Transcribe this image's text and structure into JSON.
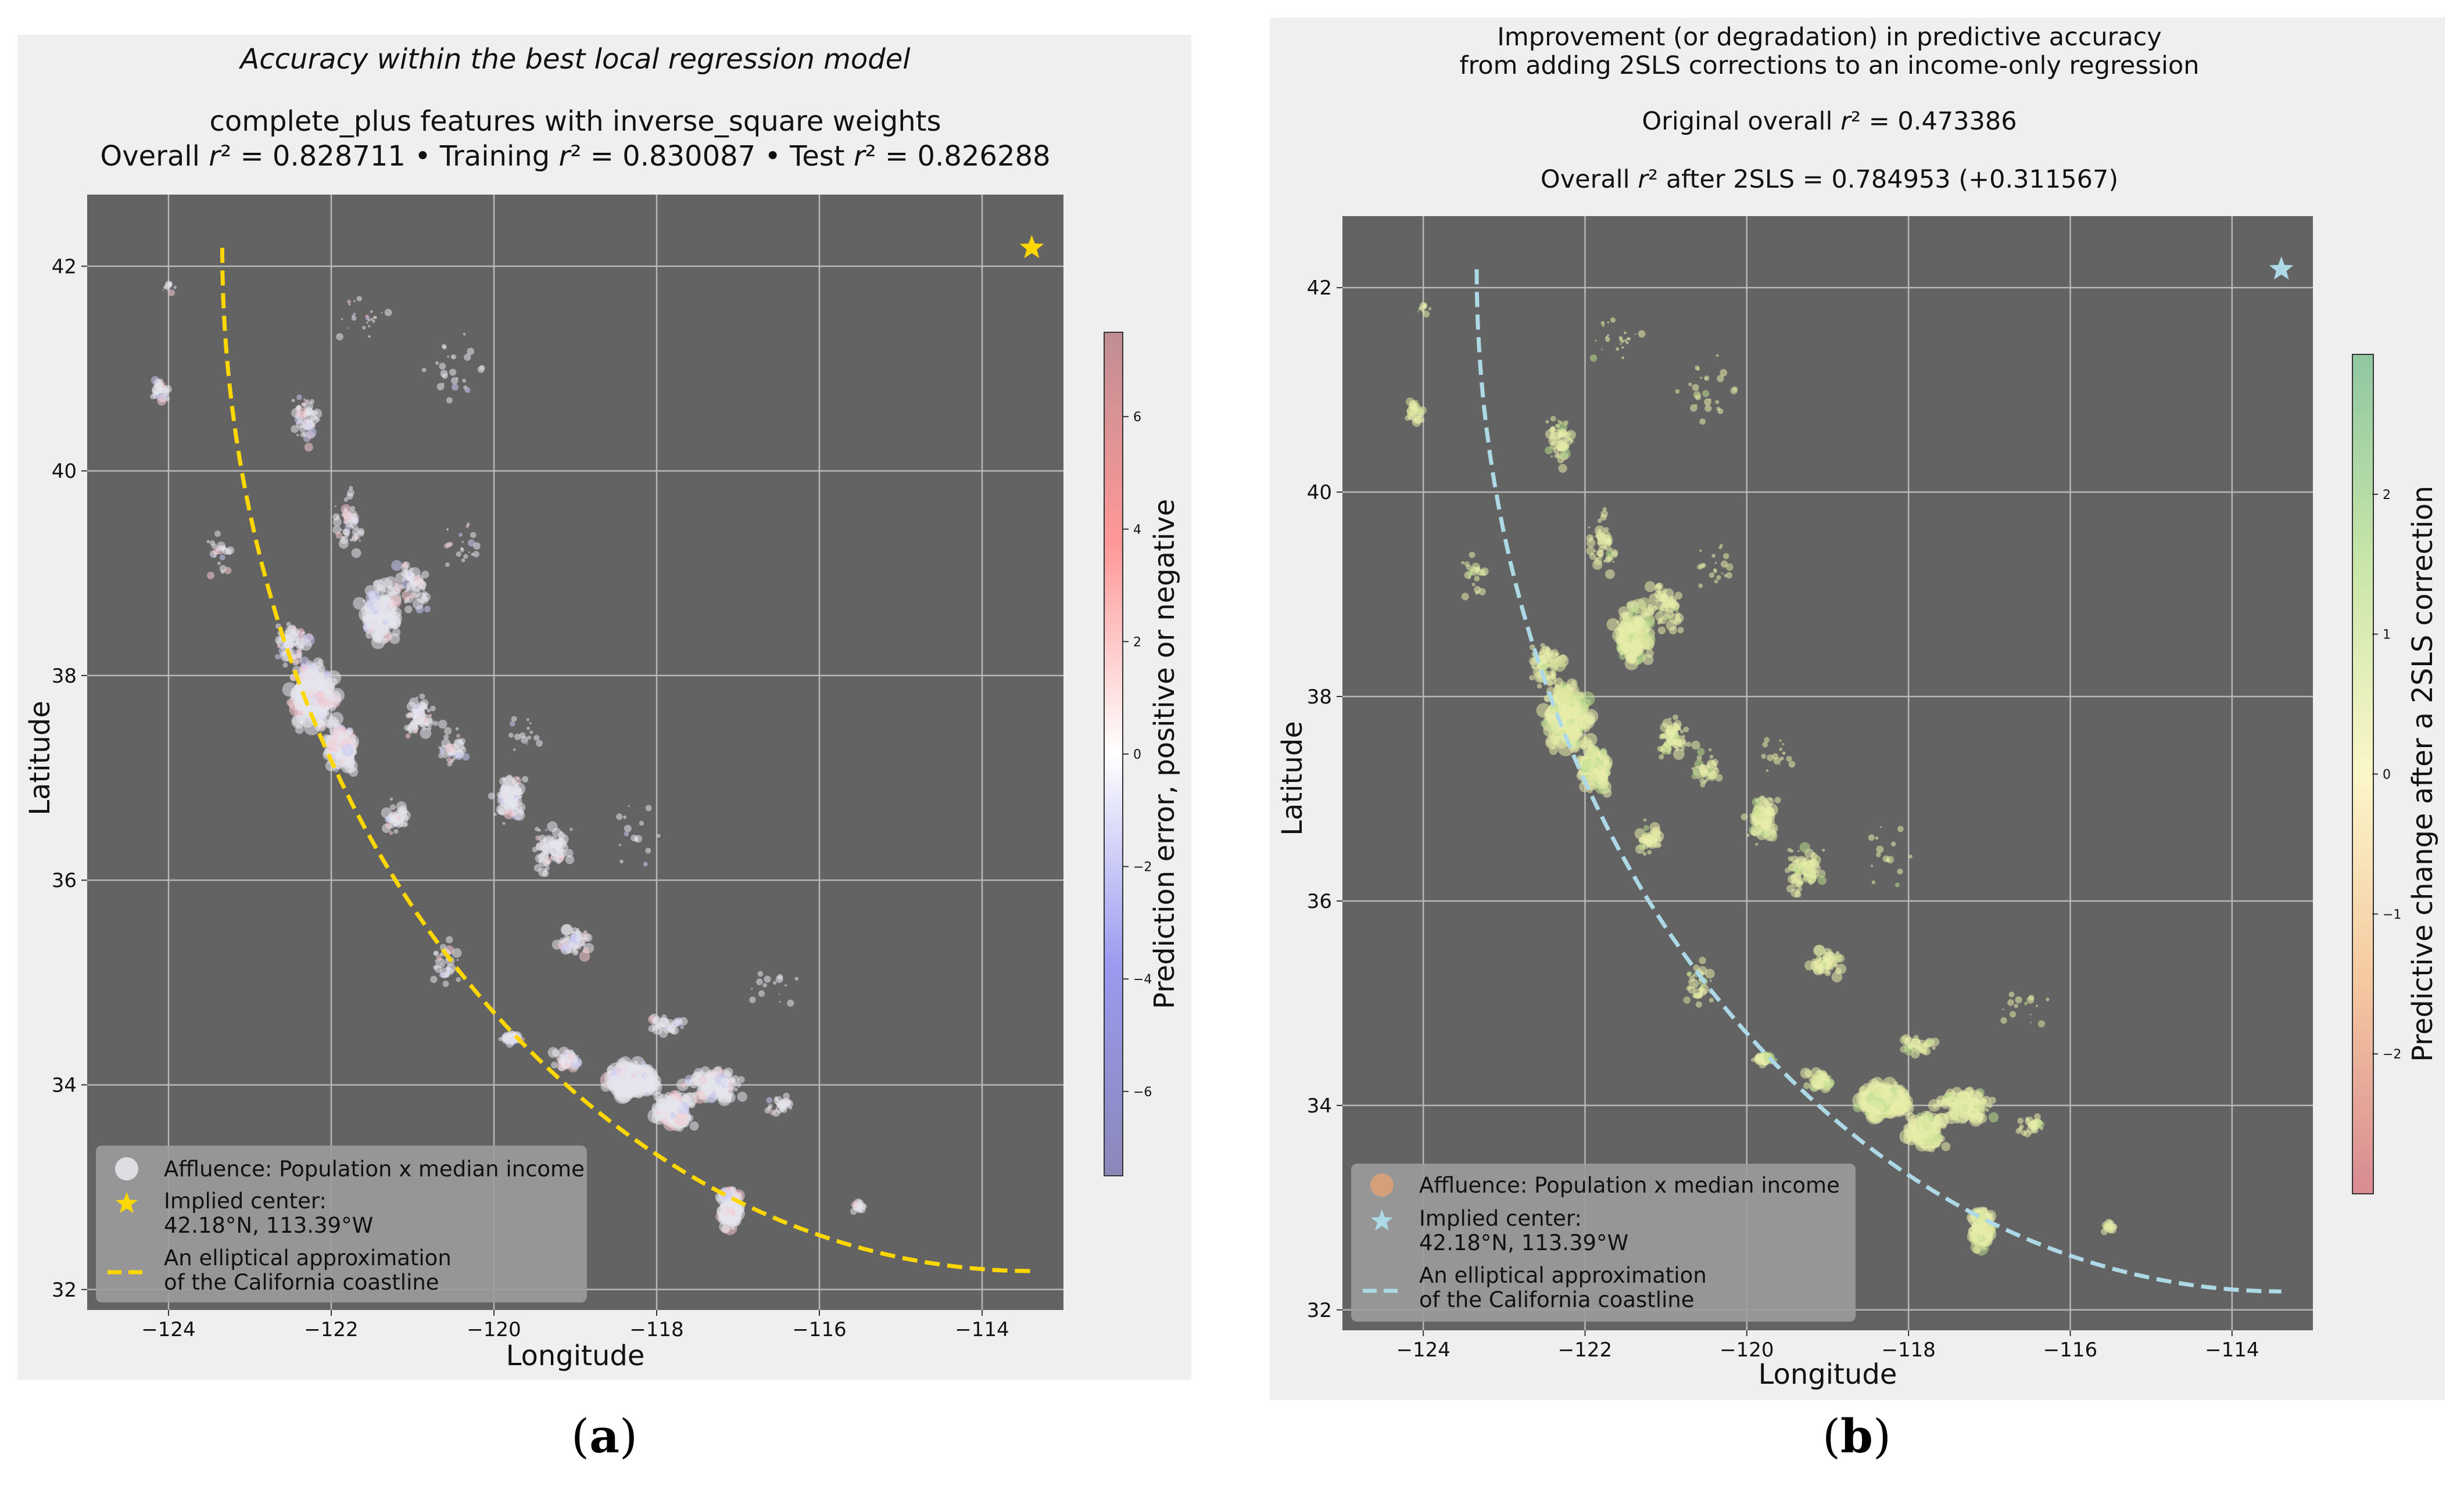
{
  "figure": {
    "subfigure_labels": [
      "a",
      "b"
    ]
  },
  "chart_data": [
    {
      "type": "scatter",
      "panel": "a",
      "title_italic": "Accuracy within the best local regression model",
      "subtitle": "complete_plus features with inverse_square weights",
      "stats_parts": [
        "Overall ",
        "r",
        "² = 0.828711  •  Training ",
        "r",
        "² = 0.830087  •  Test ",
        "r",
        "² = 0.826288"
      ],
      "xlabel": "Longitude",
      "ylabel": "Latitude",
      "xlim": [
        -125,
        -113
      ],
      "ylim": [
        31.8,
        42.7
      ],
      "xticks": [
        -124,
        -122,
        -120,
        -118,
        -116,
        -114
      ],
      "xtick_labels": [
        "−124",
        "−122",
        "−120",
        "−118",
        "−116",
        "−114"
      ],
      "yticks": [
        32,
        34,
        36,
        38,
        40,
        42
      ],
      "ytick_labels": [
        "32",
        "34",
        "36",
        "38",
        "40",
        "42"
      ],
      "grid": true,
      "point_color": "#e6e6ec",
      "coastline_color": "#ffd700",
      "colorbar": {
        "label": "Prediction error, positive or negative",
        "range": [
          -7.5,
          7.5
        ],
        "ticks": [
          6,
          4,
          2,
          0,
          -2,
          -4,
          -6
        ],
        "tick_labels": [
          "6",
          "4",
          "2",
          "0",
          "−2",
          "−4",
          "−6"
        ],
        "stops": [
          "#8a88b8",
          "#9a9af0",
          "#ffffff",
          "#ff9898",
          "#c08e93"
        ]
      },
      "implied_center": {
        "lat": 42.18,
        "lon": -113.39,
        "color": "#ffd700"
      },
      "legend": {
        "position": "lower-left",
        "entries": [
          "Affluence: Population x median income",
          "Implied center:",
          "42.18°N, 113.39°W",
          "An elliptical approximation",
          "of the California coastline"
        ]
      }
    },
    {
      "type": "scatter",
      "panel": "b",
      "title_line1": "Improvement (or degradation) in predictive accuracy",
      "title_line2": "from adding 2SLS corrections to an income-only regression",
      "original_parts": [
        "Original overall ",
        "r",
        "² = 0.473386"
      ],
      "after_parts": [
        "Overall ",
        "r",
        "² after 2SLS = 0.784953 (+0.311567)"
      ],
      "xlabel": "Longitude",
      "ylabel": "Latitude",
      "xlim": [
        -125,
        -113
      ],
      "ylim": [
        31.8,
        42.7
      ],
      "xticks": [
        -124,
        -122,
        -120,
        -118,
        -116,
        -114
      ],
      "xtick_labels": [
        "−124",
        "−122",
        "−120",
        "−118",
        "−116",
        "−114"
      ],
      "yticks": [
        32,
        34,
        36,
        38,
        40,
        42
      ],
      "ytick_labels": [
        "32",
        "34",
        "36",
        "38",
        "40",
        "42"
      ],
      "grid": true,
      "point_color": "#e8ecaa",
      "coastline_color": "#add8e6",
      "colorbar": {
        "label": "Predictive change after a 2SLS correction",
        "range": [
          -3.0,
          3.0
        ],
        "ticks": [
          2,
          1,
          0,
          -1,
          -2
        ],
        "tick_labels": [
          "2",
          "1",
          "0",
          "−1",
          "−2"
        ],
        "stops": [
          "#d88a92",
          "#f5c8a0",
          "#fbf6c8",
          "#c9e6a8",
          "#8fc7a2"
        ]
      },
      "implied_center": {
        "lat": 42.18,
        "lon": -113.39,
        "color": "#add8e6"
      },
      "legend": {
        "position": "lower-left",
        "entries": [
          "Affluence: Population x median income",
          "Implied center:",
          "42.18°N, 113.39°W",
          "An elliptical approximation",
          "of the California coastline"
        ]
      }
    }
  ]
}
